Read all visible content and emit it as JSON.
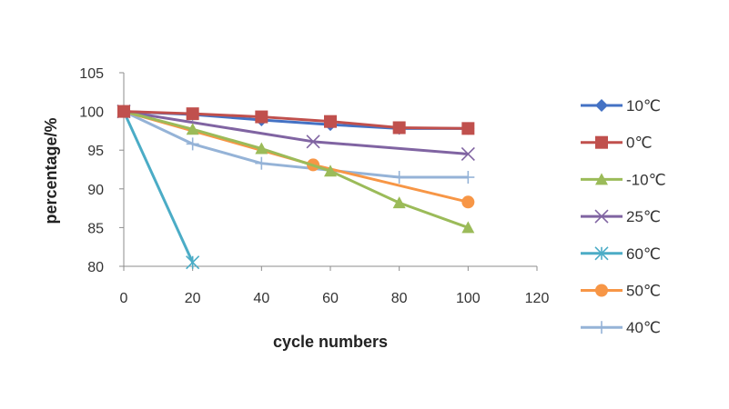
{
  "chart_data": {
    "type": "line",
    "title": "",
    "xlabel": "cycle numbers",
    "ylabel": "percentage/%",
    "xlim": [
      0,
      120
    ],
    "ylim": [
      80,
      105
    ],
    "x_ticks": [
      0,
      20,
      40,
      60,
      80,
      100,
      120
    ],
    "y_ticks": [
      80,
      85,
      90,
      95,
      100,
      105
    ],
    "grid": false,
    "legend_position": "right",
    "series": [
      {
        "name": "10℃",
        "color": "#4472C4",
        "marker": "diamond",
        "points": [
          [
            0,
            100
          ],
          [
            20,
            99.6
          ],
          [
            40,
            98.9
          ],
          [
            60,
            98.3
          ],
          [
            80,
            97.8
          ],
          [
            100,
            97.8
          ]
        ]
      },
      {
        "name": "0℃",
        "color": "#C0504D",
        "marker": "square",
        "points": [
          [
            0,
            100
          ],
          [
            20,
            99.7
          ],
          [
            40,
            99.3
          ],
          [
            60,
            98.7
          ],
          [
            80,
            97.9
          ],
          [
            100,
            97.8
          ]
        ]
      },
      {
        "name": "-10℃",
        "color": "#9BBB59",
        "marker": "triangle",
        "points": [
          [
            0,
            100
          ],
          [
            20,
            97.7
          ],
          [
            40,
            95.2
          ],
          [
            60,
            92.3
          ],
          [
            80,
            88.2
          ],
          [
            100,
            85
          ]
        ]
      },
      {
        "name": "25℃",
        "color": "#8064A2",
        "marker": "x",
        "points": [
          [
            0,
            100
          ],
          [
            55,
            96.1
          ],
          [
            100,
            94.5
          ]
        ]
      },
      {
        "name": "60℃",
        "color": "#4BACC6",
        "marker": "star",
        "points": [
          [
            0,
            100
          ],
          [
            20,
            80.5
          ]
        ]
      },
      {
        "name": "50℃",
        "color": "#F79646",
        "marker": "circle",
        "points": [
          [
            0,
            100
          ],
          [
            55,
            93.1
          ],
          [
            100,
            88.3
          ]
        ]
      },
      {
        "name": "40℃",
        "color": "#95B3D7",
        "marker": "plus",
        "points": [
          [
            0,
            100
          ],
          [
            20,
            95.8
          ],
          [
            40,
            93.3
          ],
          [
            80,
            91.5
          ],
          [
            100,
            91.5
          ]
        ]
      }
    ]
  }
}
